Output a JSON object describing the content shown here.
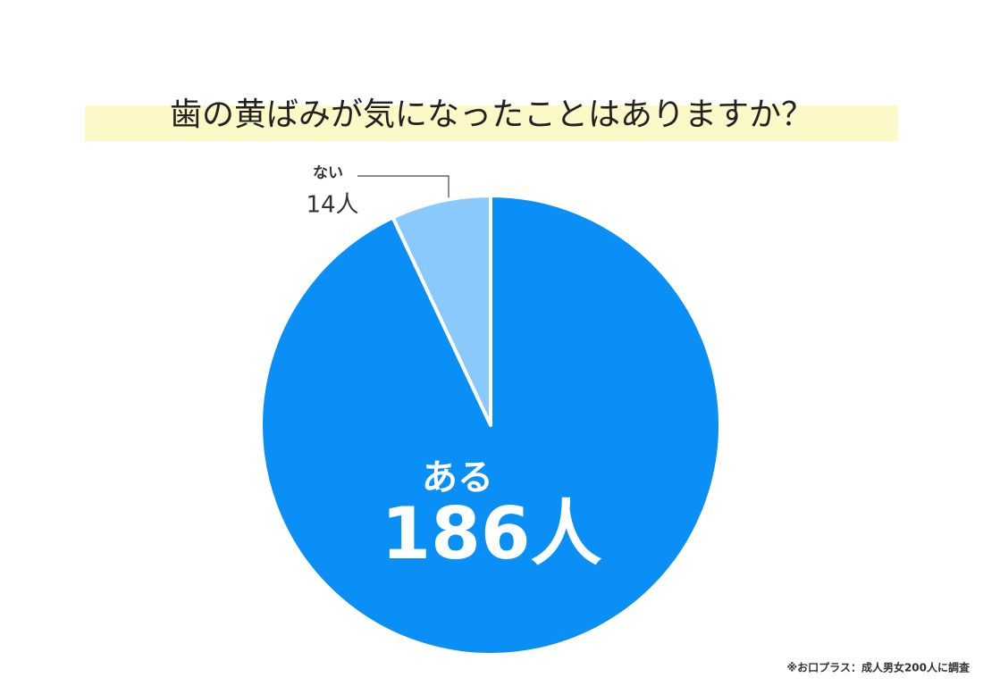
{
  "chart_data": {
    "type": "pie",
    "title": "歯の黄ばみが気になったことはありますか？",
    "categories": [
      "ある",
      "ない"
    ],
    "values": [
      186,
      14
    ],
    "value_labels": [
      "186人",
      "14人"
    ],
    "colors": [
      "#0a8ff7",
      "#8ac9fc"
    ],
    "note": "※お口プラス：成人男女200人に調査"
  }
}
